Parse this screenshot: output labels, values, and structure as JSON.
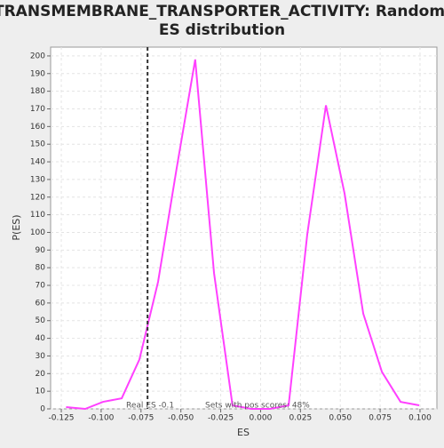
{
  "chart_data": {
    "type": "line",
    "title": "TRANSMEMBRANE_TRANSPORTER_ACTIVITY: Random ES distribution",
    "x_label": "ES",
    "y_label": "P(ES)",
    "x": [
      -0.122,
      -0.11,
      -0.0988,
      -0.0871,
      -0.076,
      -0.0643,
      -0.0527,
      -0.041,
      -0.0292,
      -0.0176,
      -0.0058,
      0.0059,
      0.0176,
      0.0293,
      0.041,
      0.0527,
      0.0644,
      0.0761,
      0.0878,
      0.0995
    ],
    "series": [
      {
        "name": "P(ES)",
        "color": "#ff40ff",
        "values": [
          1,
          0,
          4,
          6,
          28,
          72,
          136,
          198,
          77,
          2,
          0,
          0,
          2,
          99,
          172,
          122,
          54,
          21,
          4,
          2
        ]
      }
    ],
    "xlim": [
      -0.1317,
      0.1106
    ],
    "ylim": [
      0,
      205
    ],
    "xticks": [
      {
        "value": -0.125,
        "label": "-0.125"
      },
      {
        "value": -0.1,
        "label": "-0.100"
      },
      {
        "value": -0.075,
        "label": "-0.075"
      },
      {
        "value": -0.05,
        "label": "-0.050"
      },
      {
        "value": -0.025,
        "label": "-0.025"
      },
      {
        "value": 0,
        "label": "0.000"
      },
      {
        "value": 0.025,
        "label": "0.025"
      },
      {
        "value": 0.05,
        "label": "0.050"
      },
      {
        "value": 0.075,
        "label": "0.075"
      },
      {
        "value": 0.1,
        "label": "0.100"
      }
    ],
    "yticks": [
      0,
      10,
      20,
      30,
      40,
      50,
      60,
      70,
      80,
      90,
      100,
      110,
      120,
      130,
      140,
      150,
      160,
      170,
      180,
      190,
      200
    ],
    "grid": true,
    "real_es": -0.0709,
    "real_es_label": "Real ES -0.1",
    "pos_scores_label": "Sets with pos scores: 48%"
  }
}
